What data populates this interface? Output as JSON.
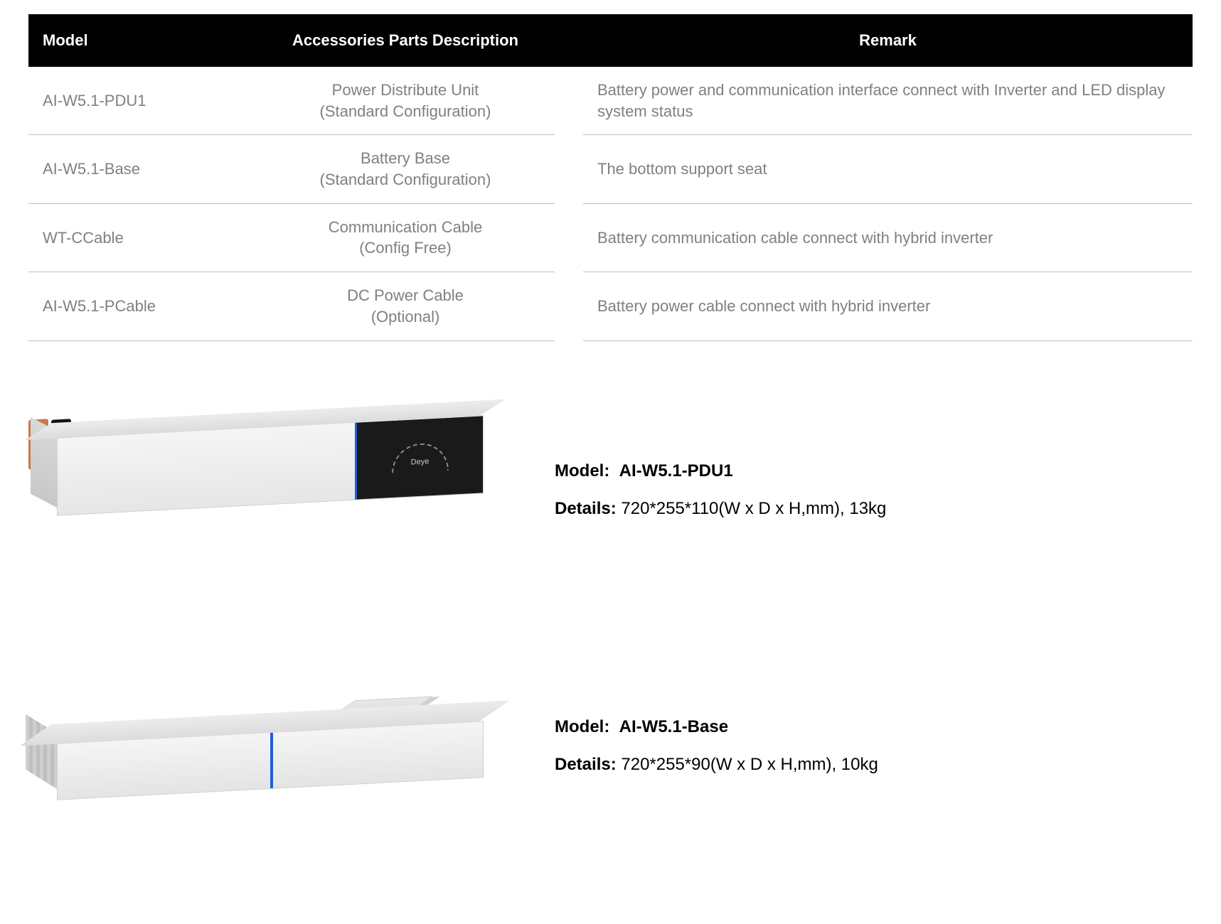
{
  "table": {
    "headers": {
      "model": "Model",
      "description": "Accessories Parts Description",
      "remark": "Remark"
    },
    "rows": [
      {
        "model": "AI-W5.1-PDU1",
        "desc_line1": "Power Distribute Unit",
        "desc_line2": "(Standard Configuration)",
        "remark": "Battery power and communication interface connect with Inverter and LED display system status"
      },
      {
        "model": "AI-W5.1-Base",
        "desc_line1": "Battery Base",
        "desc_line2": "(Standard Configuration)",
        "remark": "The bottom support seat"
      },
      {
        "model": "WT-CCable",
        "desc_line1": "Communication Cable",
        "desc_line2": "(Config Free)",
        "remark": "Battery communication cable connect with hybrid inverter"
      },
      {
        "model": "AI-W5.1-PCable",
        "desc_line1": "DC Power Cable",
        "desc_line2": "(Optional)",
        "remark": "Battery power cable connect with hybrid inverter"
      }
    ]
  },
  "products": [
    {
      "model_label": "Model:",
      "model_value": "AI-W5.1-PDU1",
      "details_label": "Details:",
      "details_value": "720*255*110(W x D x H,mm), 13kg",
      "brand_on_display": "Deye"
    },
    {
      "model_label": "Model:",
      "model_value": "AI-W5.1-Base",
      "details_label": "Details:",
      "details_value": "720*255*90(W x D x H,mm), 10kg"
    }
  ],
  "styling": {
    "header_bg": "#000000",
    "header_text": "#ffffff",
    "body_text": "#808080",
    "row_border": "#bfbfbf",
    "accent_blue": "#1e5fd9",
    "connector_orange": "#c77a4a",
    "connector_black": "#111111",
    "box_light": "#f5f5f5",
    "box_dark": "#e4e4e4",
    "header_fontsize": 22,
    "body_fontsize": 22,
    "info_fontsize": 24
  }
}
